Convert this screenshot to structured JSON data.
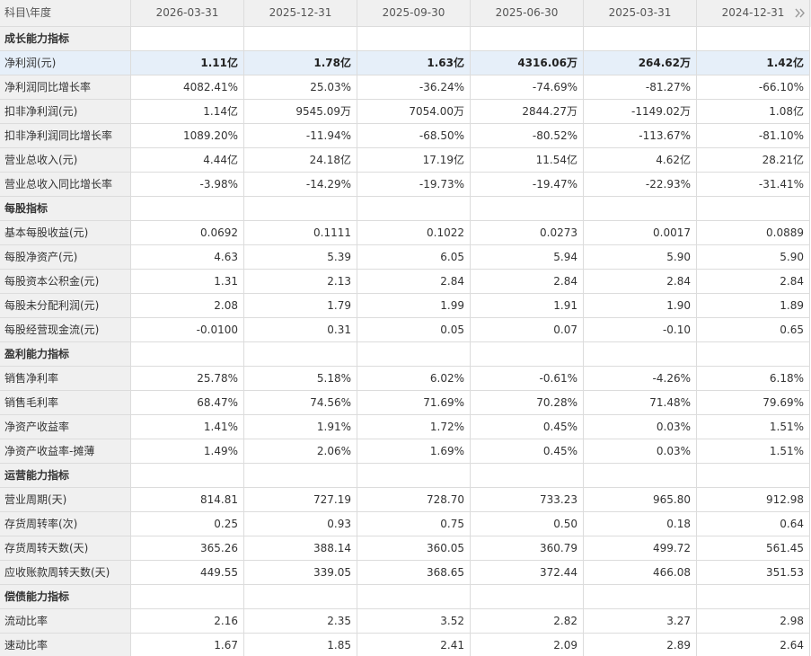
{
  "header": {
    "label": "科目\\年度",
    "columns": [
      "2026-03-31",
      "2025-12-31",
      "2025-09-30",
      "2025-06-30",
      "2025-03-31",
      "2024-12-31"
    ]
  },
  "sections": [
    {
      "title": "成长能力指标",
      "rows": [
        {
          "name": "净利润(元)",
          "values": [
            "1.11亿",
            "1.78亿",
            "1.63亿",
            "4316.06万",
            "264.62万",
            "1.42亿"
          ]
        },
        {
          "name": "净利润同比增长率",
          "values": [
            "4082.41%",
            "25.03%",
            "-36.24%",
            "-74.69%",
            "-81.27%",
            "-66.10%"
          ]
        },
        {
          "name": "扣非净利润(元)",
          "values": [
            "1.14亿",
            "9545.09万",
            "7054.00万",
            "2844.27万",
            "-1149.02万",
            "1.08亿"
          ]
        },
        {
          "name": "扣非净利润同比增长率",
          "values": [
            "1089.20%",
            "-11.94%",
            "-68.50%",
            "-80.52%",
            "-113.67%",
            "-81.10%"
          ]
        },
        {
          "name": "营业总收入(元)",
          "values": [
            "4.44亿",
            "24.18亿",
            "17.19亿",
            "11.54亿",
            "4.62亿",
            "28.21亿"
          ]
        },
        {
          "name": "营业总收入同比增长率",
          "values": [
            "-3.98%",
            "-14.29%",
            "-19.73%",
            "-19.47%",
            "-22.93%",
            "-31.41%"
          ]
        }
      ]
    },
    {
      "title": "每股指标",
      "rows": [
        {
          "name": "基本每股收益(元)",
          "values": [
            "0.0692",
            "0.1111",
            "0.1022",
            "0.0273",
            "0.0017",
            "0.0889"
          ]
        },
        {
          "name": "每股净资产(元)",
          "values": [
            "4.63",
            "5.39",
            "6.05",
            "5.94",
            "5.90",
            "5.90"
          ]
        },
        {
          "name": "每股资本公积金(元)",
          "values": [
            "1.31",
            "2.13",
            "2.84",
            "2.84",
            "2.84",
            "2.84"
          ]
        },
        {
          "name": "每股未分配利润(元)",
          "values": [
            "2.08",
            "1.79",
            "1.99",
            "1.91",
            "1.90",
            "1.89"
          ]
        },
        {
          "name": "每股经营现金流(元)",
          "values": [
            "-0.0100",
            "0.31",
            "0.05",
            "0.07",
            "-0.10",
            "0.65"
          ]
        }
      ]
    },
    {
      "title": "盈利能力指标",
      "rows": [
        {
          "name": "销售净利率",
          "values": [
            "25.78%",
            "5.18%",
            "6.02%",
            "-0.61%",
            "-4.26%",
            "6.18%"
          ]
        },
        {
          "name": "销售毛利率",
          "values": [
            "68.47%",
            "74.56%",
            "71.69%",
            "70.28%",
            "71.48%",
            "79.69%"
          ]
        },
        {
          "name": "净资产收益率",
          "values": [
            "1.41%",
            "1.91%",
            "1.72%",
            "0.45%",
            "0.03%",
            "1.51%"
          ]
        },
        {
          "name": "净资产收益率-摊薄",
          "values": [
            "1.49%",
            "2.06%",
            "1.69%",
            "0.45%",
            "0.03%",
            "1.51%"
          ]
        }
      ]
    },
    {
      "title": "运营能力指标",
      "rows": [
        {
          "name": "营业周期(天)",
          "values": [
            "814.81",
            "727.19",
            "728.70",
            "733.23",
            "965.80",
            "912.98"
          ]
        },
        {
          "name": "存货周转率(次)",
          "values": [
            "0.25",
            "0.93",
            "0.75",
            "0.50",
            "0.18",
            "0.64"
          ]
        },
        {
          "name": "存货周转天数(天)",
          "values": [
            "365.26",
            "388.14",
            "360.05",
            "360.79",
            "499.72",
            "561.45"
          ]
        },
        {
          "name": "应收账款周转天数(天)",
          "values": [
            "449.55",
            "339.05",
            "368.65",
            "372.44",
            "466.08",
            "351.53"
          ]
        }
      ]
    },
    {
      "title": "偿债能力指标",
      "rows": [
        {
          "name": "流动比率",
          "values": [
            "2.16",
            "2.35",
            "3.52",
            "2.82",
            "3.27",
            "2.98"
          ]
        },
        {
          "name": "速动比率",
          "values": [
            "1.67",
            "1.85",
            "2.41",
            "2.09",
            "2.89",
            "2.64"
          ]
        }
      ]
    }
  ]
}
